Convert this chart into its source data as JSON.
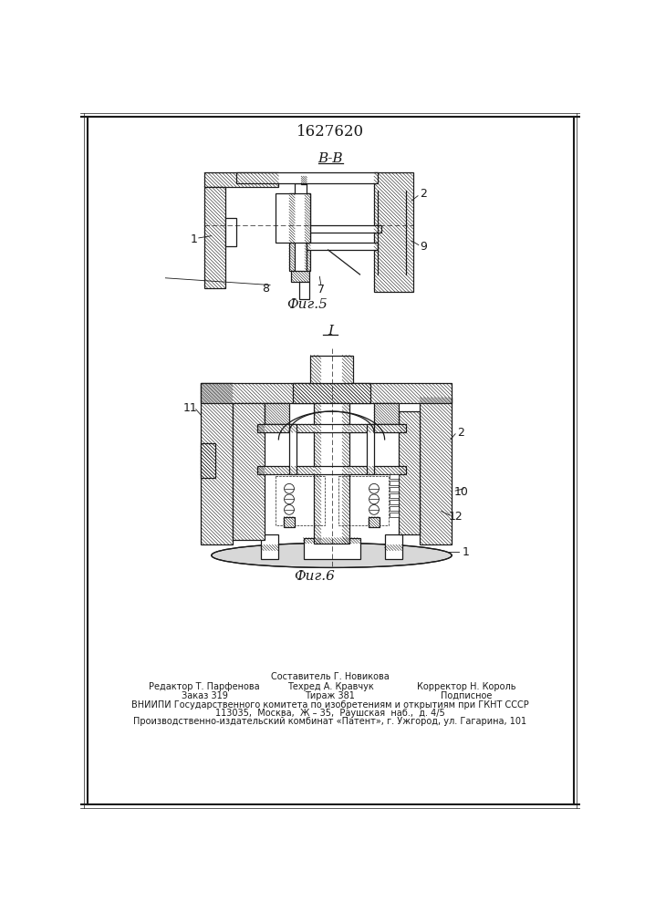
{
  "title_number": "1627620",
  "fig5_label": "В-В",
  "fig5_caption": "Фиг.5",
  "fig6_label": "I",
  "fig6_caption": "Фиг.6",
  "footer_line1_center": "Составитель Г. Новикова",
  "footer_line2_left": "Редактор Т. Парфенова",
  "footer_line2_center": "Техред А. Кравчук",
  "footer_line2_right": "Корректор Н. Король",
  "footer_line3_left": "Заказ 319",
  "footer_line3_center": "Тираж 381",
  "footer_line3_right": "Подписное",
  "footer_line4": "ВНИИПИ Государственного комитета по изобретениям и открытиям при ГКНТ СССР",
  "footer_line5": "113035,  Москва,  Ж – 35,  Раушская  наб.,  д. 4/5",
  "footer_line6": "Производственно-издательский комбинат «Патент», г. Ужгород, ул. Гагарина, 101",
  "line_color": "#1a1a1a",
  "hatch_lw": 0.4,
  "draw_lw": 0.9
}
